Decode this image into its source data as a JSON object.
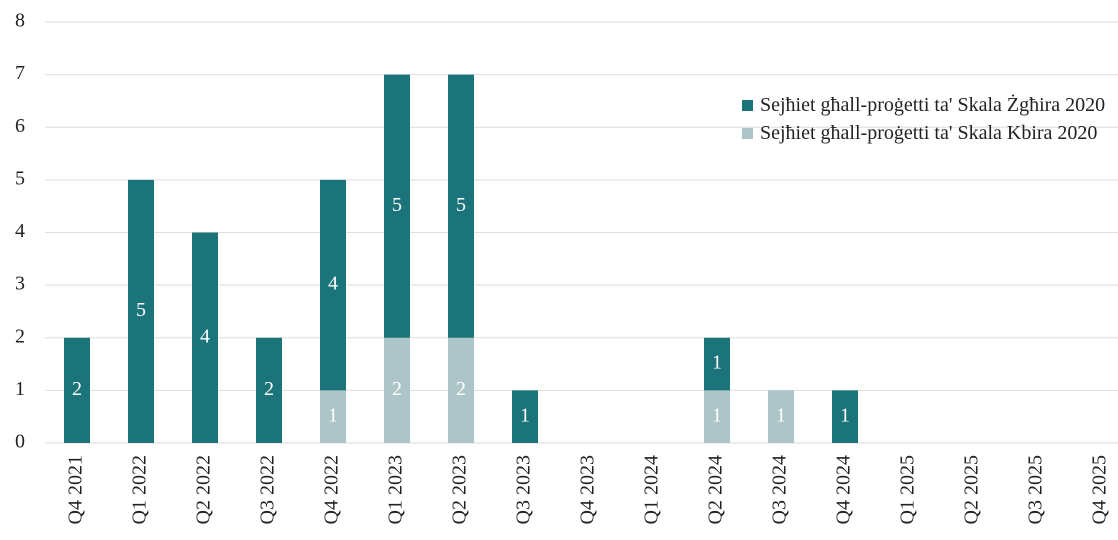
{
  "chart_data": {
    "type": "stacked_bar",
    "categories": [
      "Q4 2021",
      "Q1 2022",
      "Q2 2022",
      "Q3 2022",
      "Q4 2022",
      "Q1 2023",
      "Q2 2023",
      "Q3 2023",
      "Q4 2023",
      "Q1 2024",
      "Q2 2024",
      "Q3 2024",
      "Q4 2024",
      "Q1 2025",
      "Q2 2025",
      "Q3 2025",
      "Q4 2025"
    ],
    "series": [
      {
        "name": "Sejħiet għall-proġetti ta' Skala Żgħira 2020",
        "color": "#1b7479",
        "values": [
          2,
          5,
          4,
          2,
          4,
          5,
          5,
          1,
          0,
          0,
          1,
          0,
          1,
          0,
          0,
          0,
          0
        ]
      },
      {
        "name": "Sejħiet għall-proġetti ta' Skala Kbira 2020",
        "color": "#adc5c8",
        "values": [
          0,
          0,
          0,
          0,
          1,
          2,
          2,
          0,
          0,
          0,
          1,
          1,
          0,
          0,
          0,
          0,
          0
        ]
      }
    ],
    "stack_order": "bottom-last",
    "ylim": [
      0,
      8
    ],
    "yticks": [
      0,
      1,
      2,
      3,
      4,
      5,
      6,
      7,
      8
    ],
    "grid": true,
    "legend": "right"
  }
}
